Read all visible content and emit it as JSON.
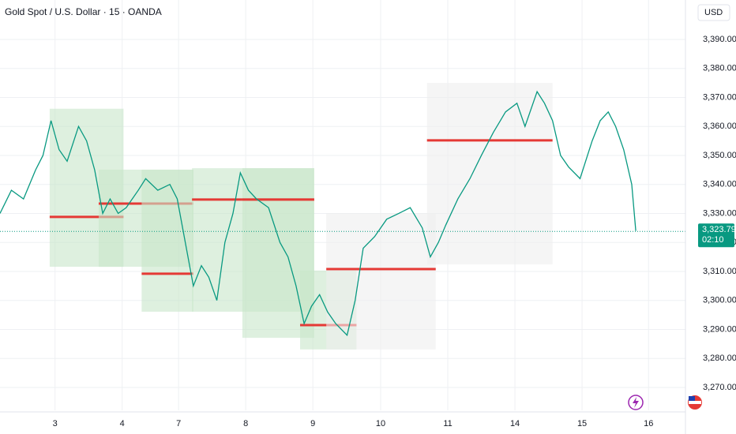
{
  "chart_data": {
    "type": "line",
    "title": "Gold Spot / U.S. Dollar · 15 · OANDA",
    "currency": "USD",
    "color": "#089981",
    "x": [
      -0.82,
      -0.65,
      -0.47,
      -0.29,
      -0.18,
      -0.06,
      0.06,
      0.18,
      0.35,
      0.47,
      0.59,
      0.71,
      0.82,
      0.94,
      1.06,
      1.24,
      1.35,
      1.53,
      1.71,
      1.82,
      1.94,
      2.06,
      2.18,
      2.29,
      2.41,
      2.53,
      2.65,
      2.76,
      2.88,
      3.0,
      3.18,
      3.35,
      3.47,
      3.59,
      3.71,
      3.82,
      3.94,
      4.06,
      4.18,
      4.35,
      4.47,
      4.59,
      4.76,
      4.94,
      5.12,
      5.29,
      5.47,
      5.59,
      5.71,
      5.82,
      6.0,
      6.18,
      6.35,
      6.53,
      6.71,
      6.88,
      7.0,
      7.18,
      7.29,
      7.41,
      7.53,
      7.65,
      7.82,
      8.0,
      8.12,
      8.24,
      8.35,
      8.47,
      8.59,
      8.65
    ],
    "values": [
      3330,
      3338,
      3335,
      3345,
      3350,
      3362,
      3352,
      3348,
      3360,
      3355,
      3345,
      3330,
      3335,
      3330,
      3332,
      3338,
      3342,
      3338,
      3340,
      3335,
      3320,
      3305,
      3312,
      3308,
      3300,
      3320,
      3330,
      3344,
      3338,
      3335,
      3332,
      3320,
      3315,
      3305,
      3292,
      3298,
      3302,
      3296,
      3292,
      3288,
      3300,
      3318,
      3322,
      3328,
      3330,
      3332,
      3325,
      3315,
      3320,
      3326,
      3335,
      3342,
      3350,
      3358,
      3365,
      3368,
      3360,
      3372,
      3368,
      3362,
      3350,
      3346,
      3342,
      3355,
      3362,
      3365,
      3360,
      3352,
      3340,
      3324
    ],
    "xlim": [
      -0.82,
      9.39
    ],
    "xticks": [
      {
        "value": 0,
        "label": "3"
      },
      {
        "value": 1.0,
        "label": "4"
      },
      {
        "value": 1.84,
        "label": "7"
      },
      {
        "value": 2.84,
        "label": "8"
      },
      {
        "value": 3.84,
        "label": "9"
      },
      {
        "value": 4.85,
        "label": "10"
      },
      {
        "value": 5.85,
        "label": "11"
      },
      {
        "value": 6.85,
        "label": "14"
      },
      {
        "value": 7.85,
        "label": "15"
      },
      {
        "value": 8.84,
        "label": "16"
      }
    ],
    "ylim": [
      3262.1,
      3403.6
    ],
    "yticks": [
      {
        "value": 3270,
        "label": "3,270.000"
      },
      {
        "value": 3280,
        "label": "3,280.000"
      },
      {
        "value": 3290,
        "label": "3,290.000"
      },
      {
        "value": 3300,
        "label": "3,300.000"
      },
      {
        "value": 3310,
        "label": "3,310.000"
      },
      {
        "value": 3320,
        "label": "3,320.000"
      },
      {
        "value": 3330,
        "label": "3,330.000"
      },
      {
        "value": 3340,
        "label": "3,340.000"
      },
      {
        "value": 3350,
        "label": "3,350.000"
      },
      {
        "value": 3360,
        "label": "3,360.000"
      },
      {
        "value": 3370,
        "label": "3,370.000"
      },
      {
        "value": 3380,
        "label": "3,380.000"
      },
      {
        "value": 3390,
        "label": "3,390.000"
      }
    ],
    "last_price": {
      "value": 3323.795,
      "label": "3,323.795"
    },
    "countdown": "02:10",
    "profiles": [
      {
        "x": [
          -0.08,
          1.02
        ],
        "low": 3311.6,
        "high": 3366.1,
        "poc": 3328.8,
        "color": "#c8e6c9"
      },
      {
        "x": [
          0.65,
          2.06
        ],
        "low": 3311.6,
        "high": 3345.1,
        "poc": 3333.4,
        "color": "#c8e6c9"
      },
      {
        "x": [
          1.29,
          2.06
        ],
        "low": 3296.1,
        "high": 3345.1,
        "poc": 3309.2,
        "color": "#c8e6c9"
      },
      {
        "x": [
          2.04,
          3.86
        ],
        "low": 3296.1,
        "high": 3345.6,
        "poc": 3334.8,
        "color": "#c8e6c9"
      },
      {
        "x": [
          2.79,
          3.86
        ],
        "low": 3287.1,
        "high": 3345.6,
        "poc": 3334.8,
        "color": "#c8e6c9"
      },
      {
        "x": [
          3.65,
          4.49
        ],
        "low": 3283.1,
        "high": 3310.3,
        "poc": 3291.5,
        "color": "#c8e6c9"
      },
      {
        "x": [
          4.04,
          5.67
        ],
        "low": 3283.1,
        "high": 3330.1,
        "poc": 3310.8,
        "color": "#eeeeee"
      },
      {
        "x": [
          5.54,
          7.41
        ],
        "low": 3312.4,
        "high": 3375.0,
        "poc": 3355.2,
        "color": "#eeeeee"
      }
    ],
    "poc_color": "#e53935"
  }
}
